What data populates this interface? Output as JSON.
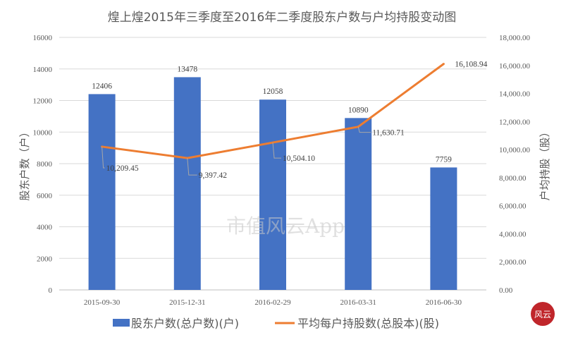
{
  "chart_data": {
    "type": "bar+line",
    "title": "煌上煌2015年三季度至2016年二季度股东户数与户均持股变动图",
    "categories": [
      "2015-09-30",
      "2015-12-31",
      "2016-02-29",
      "2016-03-31",
      "2016-06-30"
    ],
    "series": [
      {
        "name": "股东户数(总户数)(户)",
        "type": "bar",
        "axis": "left",
        "color": "#4472C4",
        "values": [
          12406,
          13478,
          12058,
          10890,
          7759
        ],
        "labels": [
          "12406",
          "13478",
          "12058",
          "10890",
          "7759"
        ]
      },
      {
        "name": "平均每户持股数(总股本)(股)",
        "type": "line",
        "axis": "right",
        "color": "#ED7D31",
        "values": [
          10209.45,
          9397.42,
          10504.1,
          11630.71,
          16108.94
        ],
        "labels": [
          "10,209.45",
          "9,397.42",
          "10,504.10",
          "11,630.71",
          "16,108.94"
        ]
      }
    ],
    "ylabel": "股东户数（户）",
    "y2label": "户均持股（股）",
    "ylim": [
      0,
      16000
    ],
    "y2lim": [
      0,
      18000
    ],
    "yticks": [
      "0",
      "2000",
      "4000",
      "6000",
      "8000",
      "10000",
      "12000",
      "14000",
      "16000"
    ],
    "y2ticks": [
      "0.00",
      "2,000.00",
      "4,000.00",
      "6,000.00",
      "8,000.00",
      "10,000.00",
      "12,000.00",
      "14,000.00",
      "16,000.00",
      "18,000.00"
    ],
    "grid": true,
    "legend": "bottom"
  },
  "watermark": "市值风云App",
  "logo": "风云"
}
